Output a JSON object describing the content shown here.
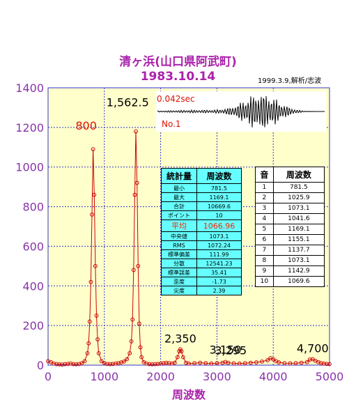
{
  "title": "清ヶ浜(山口県阿武町)",
  "subtitle": "1983.10.14",
  "note": "1999.3.9,解析/志波",
  "colors": {
    "plot_bg": "#ffffcc",
    "grid": "#3333cc",
    "line": "#cc0000",
    "axis_text": "#8833aa",
    "title": "#aa22aa"
  },
  "waveform": {
    "duration_label": "0.042sec",
    "number_label": "No.1"
  },
  "chart_data": {
    "type": "line",
    "xlabel": "周波数",
    "ylabel": "",
    "xlim": [
      0,
      5000
    ],
    "ylim": [
      0,
      1400
    ],
    "xticks": [
      0,
      1000,
      2000,
      3000,
      4000,
      5000
    ],
    "yticks": [
      0,
      200,
      400,
      600,
      800,
      1000,
      1200,
      1400
    ],
    "grid": true,
    "series": [
      {
        "values_x": [
          0,
          50,
          100,
          150,
          200,
          250,
          300,
          350,
          400,
          450,
          500,
          550,
          600,
          650,
          700,
          720,
          740,
          760,
          780,
          800,
          820,
          840,
          860,
          880,
          900,
          950,
          1000,
          1050,
          1100,
          1150,
          1200,
          1250,
          1300,
          1350,
          1400,
          1450,
          1480,
          1500,
          1520,
          1540,
          1560,
          1580,
          1600,
          1620,
          1640,
          1660,
          1700,
          1750,
          1800,
          1850,
          1900,
          1950,
          2000,
          2050,
          2100,
          2150,
          2200,
          2250,
          2300,
          2330,
          2350,
          2370,
          2400,
          2450,
          2500,
          2600,
          2700,
          2800,
          2900,
          3000,
          3100,
          3150,
          3200,
          3300,
          3400,
          3500,
          3600,
          3700,
          3800,
          3900,
          3950,
          4000,
          4050,
          4100,
          4200,
          4300,
          4400,
          4500,
          4600,
          4650,
          4700,
          4750,
          4800,
          4850,
          4900,
          4950,
          5000
        ],
        "values_y": [
          20,
          15,
          8,
          5,
          4,
          3,
          5,
          6,
          8,
          5,
          4,
          6,
          10,
          20,
          60,
          110,
          220,
          420,
          760,
          1090,
          860,
          500,
          250,
          130,
          60,
          20,
          10,
          6,
          5,
          6,
          8,
          10,
          14,
          18,
          30,
          60,
          120,
          230,
          480,
          860,
          1180,
          920,
          500,
          210,
          90,
          40,
          15,
          8,
          5,
          4,
          5,
          6,
          8,
          10,
          12,
          10,
          8,
          12,
          40,
          70,
          80,
          70,
          40,
          12,
          8,
          10,
          12,
          10,
          8,
          10,
          12,
          16,
          12,
          9,
          8,
          10,
          12,
          14,
          18,
          25,
          35,
          30,
          20,
          14,
          10,
          9,
          10,
          12,
          15,
          28,
          30,
          22,
          15,
          10,
          8,
          6,
          5
        ]
      }
    ],
    "peak_labels": [
      {
        "text": "800",
        "x": 800,
        "y": 1090
      },
      {
        "text": "1,562.5",
        "x": 1562.5,
        "y": 1180
      },
      {
        "text": "2,350",
        "x": 2350,
        "y": 80
      },
      {
        "text": "3,150",
        "x": 3150,
        "y": 16
      },
      {
        "text": "3,295",
        "x": 3295,
        "y": 12
      },
      {
        "text": "4,700",
        "x": 4700,
        "y": 22
      }
    ]
  },
  "stats_table": {
    "headers": [
      "統計量",
      "周波数"
    ],
    "rows": [
      [
        "最小",
        "781.5"
      ],
      [
        "最大",
        "1169.1"
      ],
      [
        "合計",
        "10669.6"
      ],
      [
        "ポイント",
        "10"
      ],
      [
        "平均",
        "1066.96"
      ],
      [
        "中央値",
        "1073.1"
      ],
      [
        "RMS",
        "1072.24"
      ],
      [
        "標準偏差",
        "111.99"
      ],
      [
        "分散",
        "12541.23"
      ],
      [
        "標準誤差",
        "35.41"
      ],
      [
        "歪度",
        "-1.73"
      ],
      [
        "尖度",
        "2.39"
      ]
    ]
  },
  "sound_table": {
    "headers": [
      "音",
      "周波数"
    ],
    "rows": [
      [
        "1",
        "781.5"
      ],
      [
        "2",
        "1025.9"
      ],
      [
        "3",
        "1073.1"
      ],
      [
        "4",
        "1041.6"
      ],
      [
        "5",
        "1169.1"
      ],
      [
        "6",
        "1155.1"
      ],
      [
        "7",
        "1137.7"
      ],
      [
        "8",
        "1073.1"
      ],
      [
        "9",
        "1142.9"
      ],
      [
        "10",
        "1069.6"
      ]
    ]
  }
}
